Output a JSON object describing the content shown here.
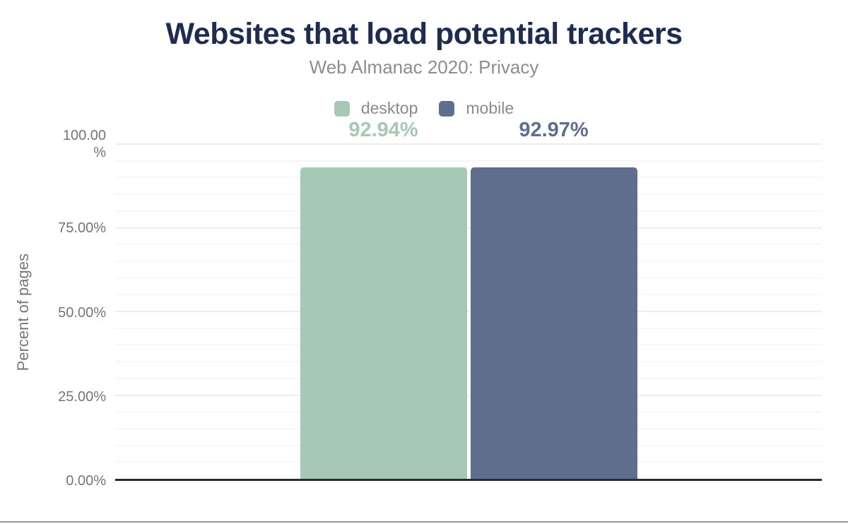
{
  "chart_data": {
    "type": "bar",
    "title": "Websites that load potential trackers",
    "subtitle": "Web Almanac 2020: Privacy",
    "ylabel": "Percent of pages",
    "xlabel": "",
    "ylim": [
      0,
      100
    ],
    "legend_position": "top-center",
    "grid": {
      "minor_step_pct": 5,
      "major_step_pct": 25
    },
    "categories": [
      "desktop",
      "mobile"
    ],
    "series": [
      {
        "name": "desktop",
        "value": 92.94,
        "label": "92.94%",
        "color": "#a6c8b5"
      },
      {
        "name": "mobile",
        "value": 92.97,
        "label": "92.97%",
        "color": "#5f6e8c"
      }
    ],
    "yticks": [
      {
        "value": 0,
        "lines": [
          "0.00%"
        ]
      },
      {
        "value": 25,
        "lines": [
          "25.00%"
        ]
      },
      {
        "value": 50,
        "lines": [
          "50.00%"
        ]
      },
      {
        "value": 75,
        "lines": [
          "75.00%"
        ]
      },
      {
        "value": 100,
        "lines": [
          "100.00",
          "%"
        ]
      }
    ]
  },
  "colors": {
    "title": "#1e2d4f",
    "subtitle": "#8d8d8d",
    "tick_label": "#74747c",
    "axis_title": "#787878",
    "legend_label": "#8a8a8a",
    "axis_line": "#2b2b2b",
    "grid_minor": "#f7f7f7",
    "grid_major": "#ededed",
    "bottom_divider": "#999999",
    "background": "#ffffff"
  }
}
